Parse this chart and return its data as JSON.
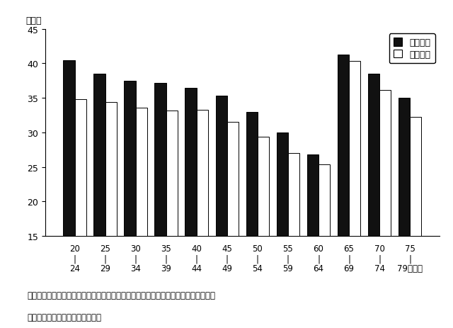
{
  "age_top": [
    "20",
    "25",
    "30",
    "35",
    "40",
    "45",
    "50",
    "55",
    "60",
    "65",
    "70",
    "75"
  ],
  "age_bottom": [
    "24",
    "29",
    "34",
    "39",
    "44",
    "49",
    "54",
    "59",
    "64",
    "69",
    "74",
    "79"
  ],
  "values_ari": [
    40.5,
    38.5,
    37.5,
    37.2,
    36.5,
    35.3,
    33.0,
    30.0,
    26.8,
    41.3,
    38.5,
    35.0
  ],
  "values_nashi": [
    34.8,
    34.4,
    33.6,
    33.2,
    33.3,
    31.5,
    29.4,
    27.0,
    25.4,
    40.4,
    36.1,
    32.2
  ],
  "bar_color_ari": "#111111",
  "bar_color_nashi": "#ffffff",
  "bar_edgecolor": "#000000",
  "ylim": [
    15,
    45
  ],
  "yticks": [
    15,
    20,
    25,
    30,
    35,
    40,
    45
  ],
  "ylabel": "（点）",
  "legend_ari": "経験あり",
  "legend_nashi": "経験なし",
  "caption_fig": "围４－８　学校時代の運動部（クラブ）活動の経験別新体力テストの合計点（女子）",
  "note": "（注）围４－７の（注）に同じ。",
  "background_color": "#ffffff",
  "bar_width": 0.38
}
